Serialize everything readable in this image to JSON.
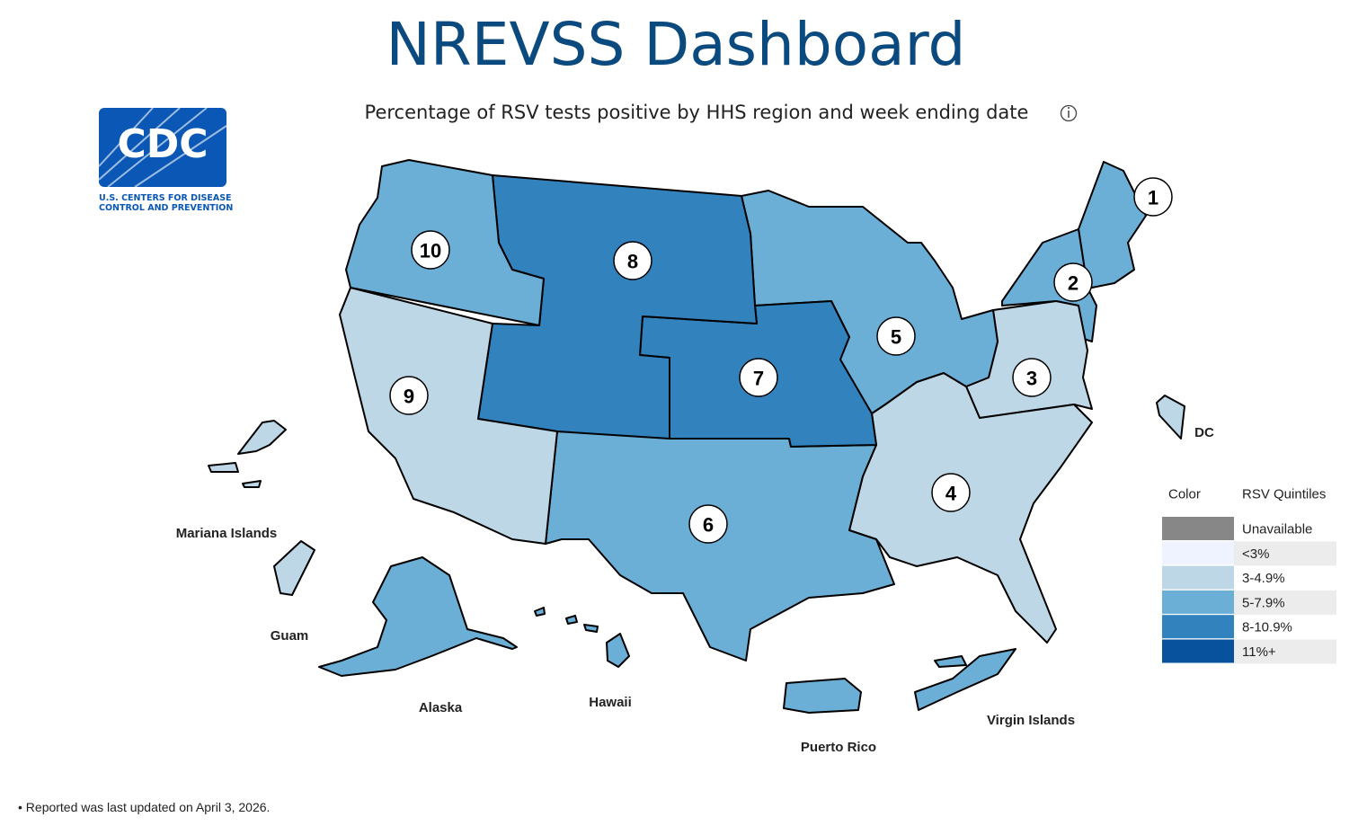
{
  "header": {
    "title": "NREVSS Dashboard",
    "subtitle": "Percentage of RSV tests positive by HHS region and week ending date"
  },
  "logo": {
    "mark": "CDC",
    "lines": [
      "U.S. CENTERS FOR DISEASE",
      "CONTROL AND PREVENTION"
    ]
  },
  "regions": [
    {
      "label": "1",
      "quintile": 3
    },
    {
      "label": "2",
      "quintile": 3
    },
    {
      "label": "3",
      "quintile": 2
    },
    {
      "label": "4",
      "quintile": 2
    },
    {
      "label": "5",
      "quintile": 3
    },
    {
      "label": "6",
      "quintile": 3
    },
    {
      "label": "7",
      "quintile": 4
    },
    {
      "label": "8",
      "quintile": 4
    },
    {
      "label": "9",
      "quintile": 2
    },
    {
      "label": "10",
      "quintile": 3
    }
  ],
  "territories": [
    {
      "name": "Mariana Islands",
      "quintile": 2
    },
    {
      "name": "Guam",
      "quintile": 2
    },
    {
      "name": "Alaska",
      "quintile": 3
    },
    {
      "name": "Hawaii",
      "quintile": 3
    },
    {
      "name": "Puerto Rico",
      "quintile": 3
    },
    {
      "name": "Virgin Islands",
      "quintile": 3
    },
    {
      "name": "DC",
      "quintile": 2
    }
  ],
  "legend": {
    "headers": [
      "Color",
      "RSV Quintiles"
    ],
    "items": [
      {
        "label": "Unavailable",
        "color": "#878787"
      },
      {
        "label": "<3%",
        "color": "#eff3ff"
      },
      {
        "label": "3-4.9%",
        "color": "#bdd7e7"
      },
      {
        "label": "5-7.9%",
        "color": "#6baed6"
      },
      {
        "label": "8-10.9%",
        "color": "#3182bd"
      },
      {
        "label": "11%+",
        "color": "#08519c"
      }
    ]
  },
  "footnote": "• Reported was last updated on April 3, 2026."
}
